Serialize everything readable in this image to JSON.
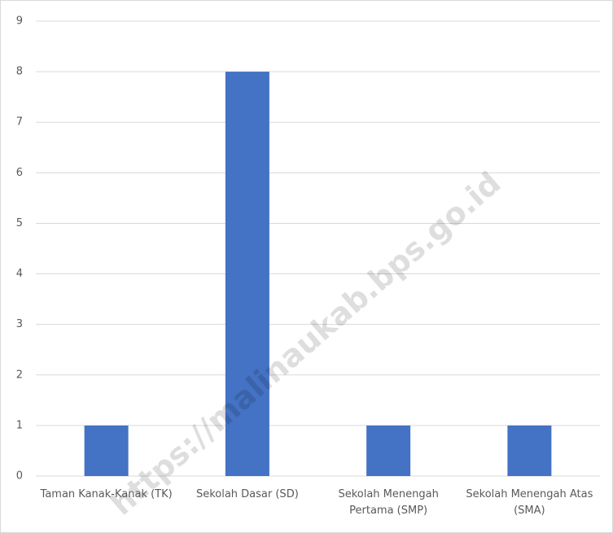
{
  "chart_data": {
    "type": "bar",
    "categories": [
      "Taman Kanak-Kanak (TK)",
      "Sekolah Dasar (SD)",
      "Sekolah Menengah Pertama (SMP)",
      "Sekolah Menengah Atas (SMA)"
    ],
    "values": [
      1,
      8,
      1,
      1
    ],
    "color": "#4472c4",
    "ylim": [
      0,
      9
    ],
    "yticks": [
      0,
      1,
      2,
      3,
      4,
      5,
      6,
      7,
      8,
      9
    ],
    "grid": true,
    "watermark": "https://malinaukab.bps.go.id"
  }
}
